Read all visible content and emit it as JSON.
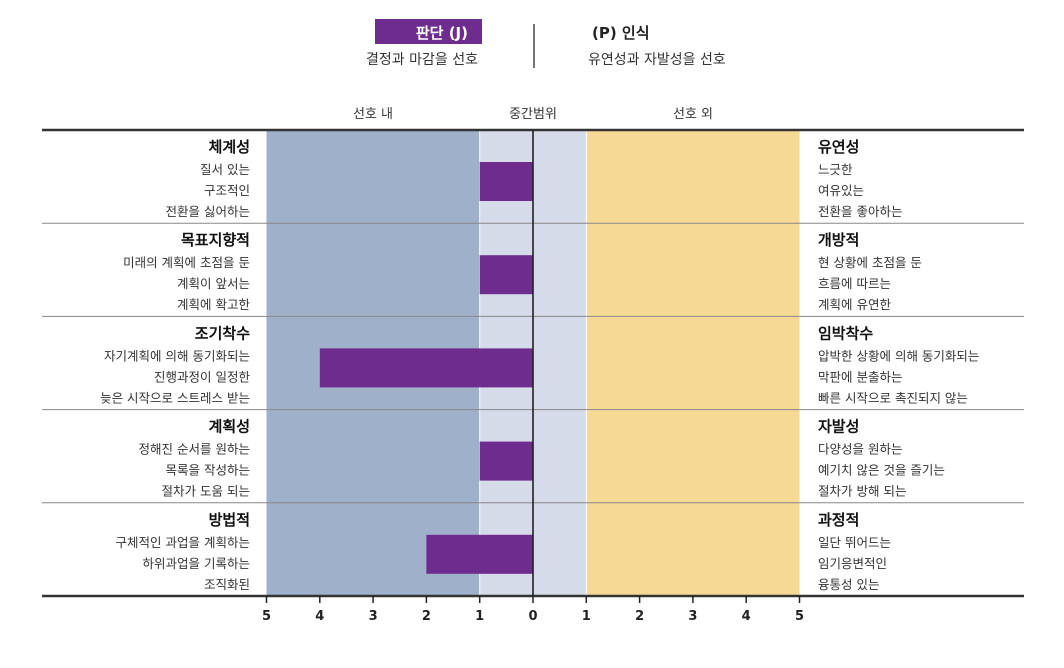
{
  "chart_data": {
    "type": "bar",
    "orientation": "horizontal-diverging",
    "legend": {
      "left_badge": "판단 (J)",
      "left_desc": "결정과 마감을 선호",
      "right_title": "(P) 인식",
      "right_desc": "유연성과 자발성을 선호"
    },
    "zones": {
      "preferred": "선호 내",
      "mid": "중간범위",
      "outside": "선호 외"
    },
    "x_ticks": [
      "5",
      "4",
      "3",
      "2",
      "1",
      "0",
      "1",
      "2",
      "3",
      "4",
      "5"
    ],
    "xlim": [
      -5,
      5
    ],
    "mid_range": [
      -1,
      1
    ],
    "categories": [
      {
        "left_title": "체계성",
        "left_lines": [
          "질서 있는",
          "구조적인",
          "전환을 싫어하는"
        ],
        "right_title": "유연성",
        "right_lines": [
          "느긋한",
          "여유있는",
          "전환을 좋아하는"
        ],
        "value": -1
      },
      {
        "left_title": "목표지향적",
        "left_lines": [
          "미래의 계획에 초점을 둔",
          "계획이 앞서는",
          "계획에 확고한"
        ],
        "right_title": "개방적",
        "right_lines": [
          "현 상황에 초점을 둔",
          "흐름에 따르는",
          "계획에 유연한"
        ],
        "value": -1
      },
      {
        "left_title": "조기착수",
        "left_lines": [
          "자기계획에 의해 동기화되는",
          "진행과정이 일정한",
          "늦은 시작으로 스트레스 받는"
        ],
        "right_title": "임박착수",
        "right_lines": [
          "압박한 상황에 의해 동기화되는",
          "막판에 분출하는",
          "빠른 시작으로 촉진되지 않는"
        ],
        "value": -4
      },
      {
        "left_title": "계획성",
        "left_lines": [
          "정해진 순서를 원하는",
          "목록을 작성하는",
          "절차가 도움 되는"
        ],
        "right_title": "자발성",
        "right_lines": [
          "다양성을 원하는",
          "예기치 않은 것을 즐기는",
          "절차가 방해 되는"
        ],
        "value": -1
      },
      {
        "left_title": "방법적",
        "left_lines": [
          "구체적인 과업을 계획하는",
          "하위과업을 기록하는",
          "조직화된"
        ],
        "right_title": "과정적",
        "right_lines": [
          "일단 뛰어드는",
          "임기응변적인",
          "융통성 있는"
        ],
        "value": -2
      }
    ]
  },
  "colors": {
    "preferred_zone": "#9fb0cb",
    "mid_zone": "#d6dbe9",
    "outside_zone": "#f7d996",
    "bar": "#6f2c8f",
    "badge": "#6f2c8f",
    "rule": "#333333",
    "separator": "#888888"
  }
}
